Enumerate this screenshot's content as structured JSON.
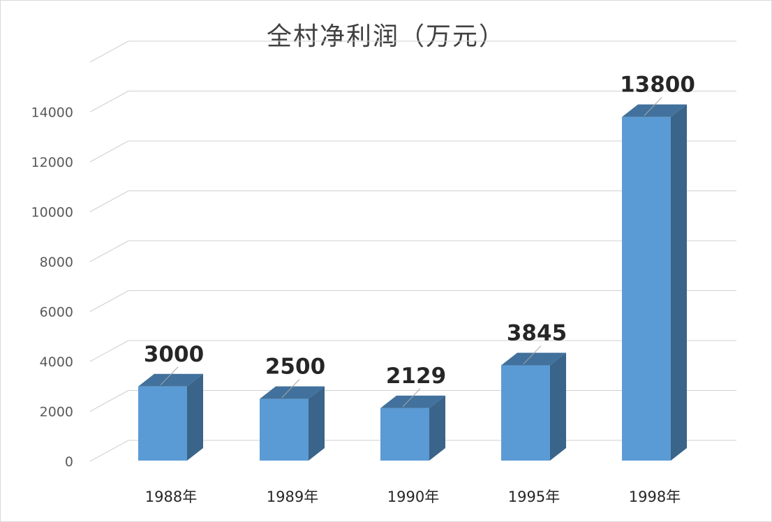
{
  "chart_data": {
    "type": "bar",
    "style": "3d-column",
    "title": "全村净利润（万元）",
    "categories": [
      "1988年",
      "1989年",
      "1990年",
      "1995年",
      "1998年"
    ],
    "values": [
      3000,
      2500,
      2129,
      3845,
      13800
    ],
    "data_labels": [
      "3000",
      "2500",
      "2129",
      "3845",
      "13800"
    ],
    "y_ticks": [
      "0",
      "2000",
      "4000",
      "6000",
      "8000",
      "10000",
      "12000",
      "14000"
    ],
    "ylim": [
      0,
      14000
    ],
    "xlabel": "",
    "ylabel": "",
    "grid": true,
    "legend": "none",
    "colors": {
      "bar_front": "#5b9bd5",
      "bar_top": "#41719c",
      "bar_side": "#3a6489",
      "grid": "#d0d0d0"
    }
  }
}
